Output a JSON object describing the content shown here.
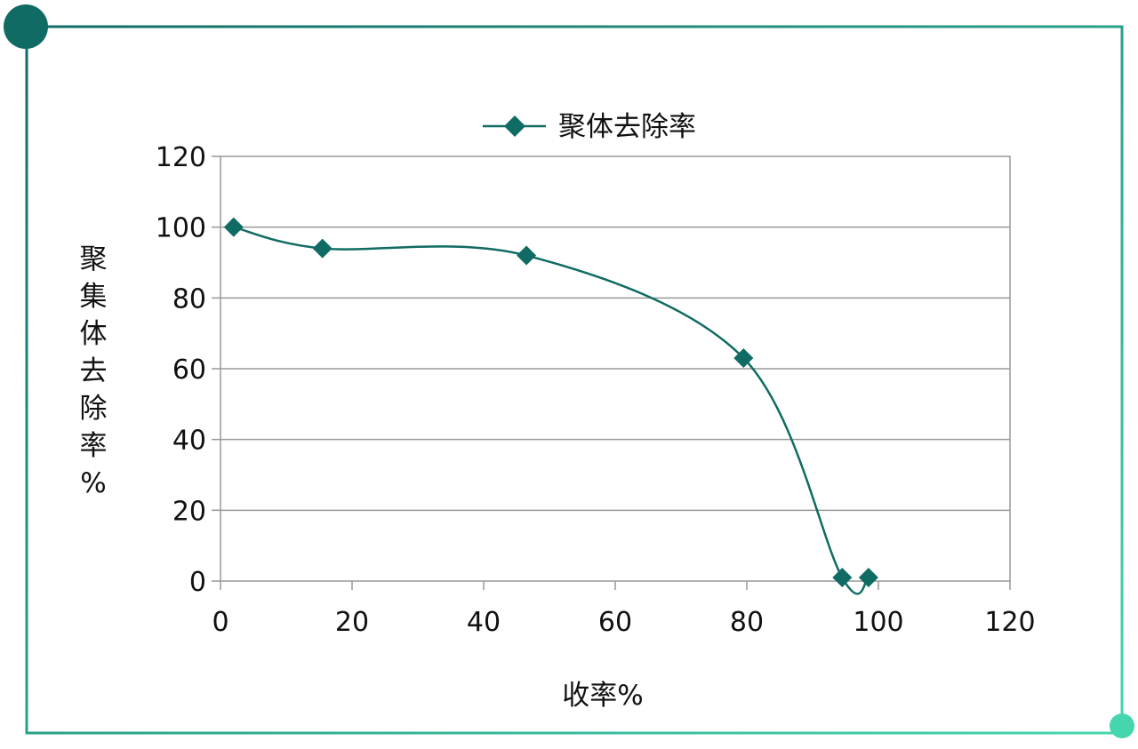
{
  "chart_data": {
    "type": "line",
    "smooth": true,
    "series": [
      {
        "name": "聚体去除率",
        "marker": "diamond",
        "color": "#0f6b63",
        "x": [
          2,
          15.5,
          46.5,
          79.5,
          94.5,
          98.5
        ],
        "y": [
          100,
          94,
          92,
          63,
          1,
          1
        ]
      }
    ],
    "xlabel": "收率%",
    "ylabel_chars": [
      "聚",
      "集",
      "体",
      "去",
      "除",
      "率",
      "%"
    ],
    "xlim": [
      0,
      120
    ],
    "ylim": [
      0,
      120
    ],
    "xticks": [
      "0",
      "20",
      "40",
      "60",
      "80",
      "100",
      "120"
    ],
    "yticks": [
      "0",
      "20",
      "40",
      "60",
      "80",
      "100",
      "120"
    ],
    "grid": "horizontal",
    "legend_position": "top-center"
  },
  "frame": {
    "dark_color": "#0f6b63",
    "light_color": "#45d6ad"
  }
}
